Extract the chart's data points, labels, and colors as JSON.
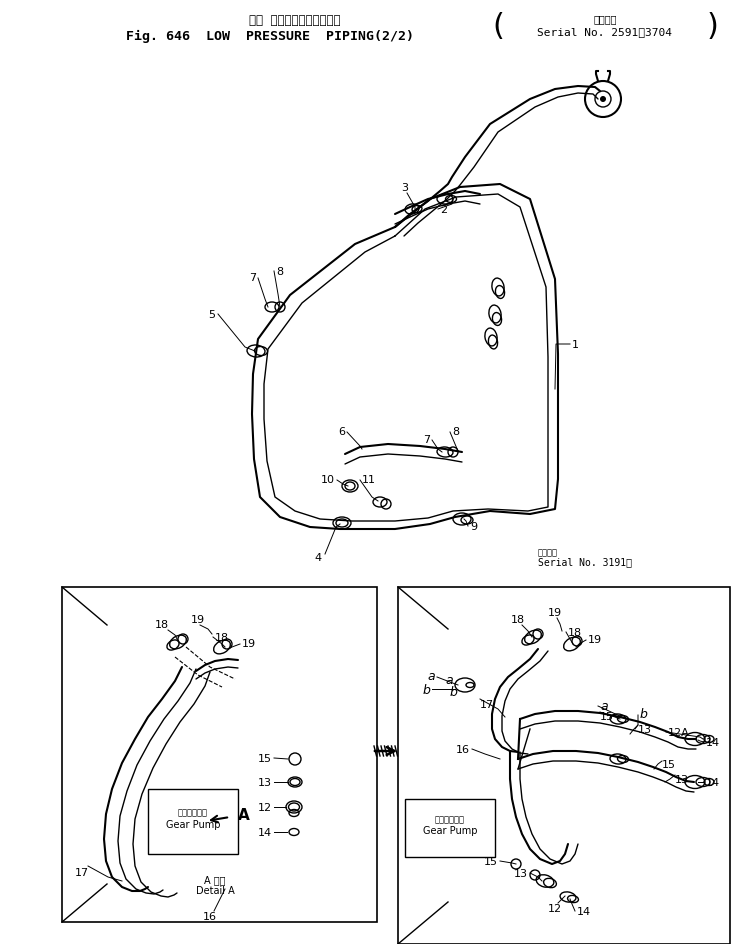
{
  "title_japanese": "ロー  プレッシャパイピング",
  "title_english": "Fig. 646  LOW  PRESSURE  PIPING(2/2)",
  "serial_label_top": "適用号機",
  "serial_range_top": "Serial No. 2591～3704",
  "serial_label_bottom": "適用号機",
  "serial_range_bottom": "Serial No. 3191－",
  "bg_color": "#ffffff",
  "line_color": "#000000",
  "fig_width": 7.34,
  "fig_height": 9.45,
  "dpi": 100
}
